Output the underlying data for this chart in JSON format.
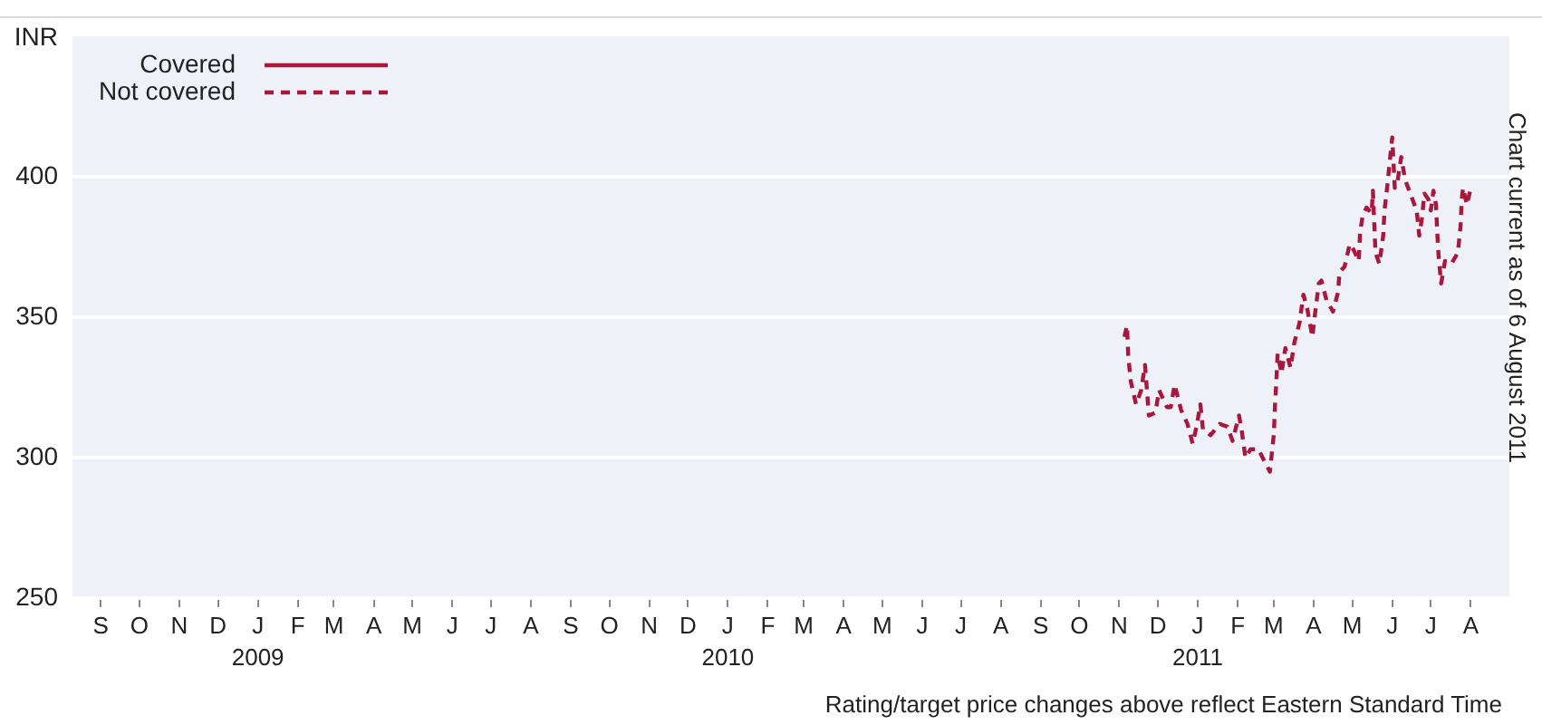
{
  "chart_data": {
    "type": "line",
    "ylabel": "INR",
    "legend": "top left",
    "grid": "y",
    "annotations": [
      "Chart current as of 6 August 2011",
      "Rating/target price changes above reflect Eastern Standard Time"
    ],
    "xlim": [
      "2008-08-10",
      "2011-08-31"
    ],
    "ylim": [
      250,
      450
    ],
    "yticks": [
      250,
      300,
      350,
      400
    ],
    "xticks": [
      {
        "value": "2008-09-01",
        "label": "S"
      },
      {
        "value": "2008-10-01",
        "label": "O"
      },
      {
        "value": "2008-11-01",
        "label": "N"
      },
      {
        "value": "2008-12-01",
        "label": "D"
      },
      {
        "value": "2009-01-01",
        "label": "J\n2009"
      },
      {
        "value": "2009-02-01",
        "label": "F"
      },
      {
        "value": "2009-03-01",
        "label": "M"
      },
      {
        "value": "2009-04-01",
        "label": "A"
      },
      {
        "value": "2009-05-01",
        "label": "M"
      },
      {
        "value": "2009-06-01",
        "label": "J"
      },
      {
        "value": "2009-07-01",
        "label": "J"
      },
      {
        "value": "2009-08-01",
        "label": "A"
      },
      {
        "value": "2009-09-01",
        "label": "S"
      },
      {
        "value": "2009-10-01",
        "label": "O"
      },
      {
        "value": "2009-11-01",
        "label": "N"
      },
      {
        "value": "2009-12-01",
        "label": "D"
      },
      {
        "value": "2010-01-01",
        "label": "J\n2010"
      },
      {
        "value": "2010-02-01",
        "label": "F"
      },
      {
        "value": "2010-03-01",
        "label": "M"
      },
      {
        "value": "2010-04-01",
        "label": "A"
      },
      {
        "value": "2010-05-01",
        "label": "M"
      },
      {
        "value": "2010-06-01",
        "label": "J"
      },
      {
        "value": "2010-07-01",
        "label": "J"
      },
      {
        "value": "2010-08-01",
        "label": "A"
      },
      {
        "value": "2010-09-01",
        "label": "S"
      },
      {
        "value": "2010-10-01",
        "label": "O"
      },
      {
        "value": "2010-11-01",
        "label": "N"
      },
      {
        "value": "2010-12-01",
        "label": "D"
      },
      {
        "value": "2011-01-01",
        "label": "J\n2011"
      },
      {
        "value": "2011-02-01",
        "label": "F"
      },
      {
        "value": "2011-03-01",
        "label": "M"
      },
      {
        "value": "2011-04-01",
        "label": "A"
      },
      {
        "value": "2011-05-01",
        "label": "M"
      },
      {
        "value": "2011-06-01",
        "label": "J"
      },
      {
        "value": "2011-07-01",
        "label": "J"
      },
      {
        "value": "2011-08-01",
        "label": "A"
      }
    ],
    "series": [
      {
        "name": "Covered",
        "color": "#a8173e",
        "line_style": "solid"
      },
      {
        "name": "Not covered",
        "color": "#a8173e",
        "line_style": "dashed",
        "x": [
          "2010-11-05",
          "2010-11-07",
          "2010-11-08",
          "2010-11-10",
          "2010-11-14",
          "2010-11-18",
          "2010-11-21",
          "2010-11-24",
          "2010-11-29",
          "2010-12-02",
          "2010-12-08",
          "2010-12-11",
          "2010-12-14",
          "2010-12-19",
          "2010-12-24",
          "2010-12-28",
          "2010-12-31",
          "2011-01-03",
          "2011-01-05",
          "2011-01-11",
          "2011-01-18",
          "2011-01-24",
          "2011-01-28",
          "2011-02-02",
          "2011-02-04",
          "2011-02-07",
          "2011-02-11",
          "2011-02-17",
          "2011-02-26",
          "2011-03-01",
          "2011-03-02",
          "2011-03-03",
          "2011-03-04",
          "2011-03-07",
          "2011-03-10",
          "2011-03-14",
          "2011-03-17",
          "2011-03-21",
          "2011-03-24",
          "2011-03-27",
          "2011-03-31",
          "2011-04-02",
          "2011-04-05",
          "2011-04-07",
          "2011-04-11",
          "2011-04-16",
          "2011-04-20",
          "2011-04-21",
          "2011-04-25",
          "2011-04-29",
          "2011-05-02",
          "2011-05-06",
          "2011-05-07",
          "2011-05-09",
          "2011-05-12",
          "2011-05-16",
          "2011-05-17",
          "2011-05-19",
          "2011-05-22",
          "2011-05-25",
          "2011-05-26",
          "2011-05-28",
          "2011-05-30",
          "2011-06-01",
          "2011-06-02",
          "2011-06-03",
          "2011-06-05",
          "2011-06-08",
          "2011-06-11",
          "2011-06-15",
          "2011-06-20",
          "2011-06-22",
          "2011-06-24",
          "2011-06-26",
          "2011-06-29",
          "2011-07-01",
          "2011-07-03",
          "2011-07-05",
          "2011-07-06",
          "2011-07-07",
          "2011-07-09",
          "2011-07-12",
          "2011-07-17",
          "2011-07-22",
          "2011-07-24",
          "2011-07-25",
          "2011-07-26",
          "2011-07-29",
          "2011-08-01"
        ],
        "values": [
          343,
          347,
          336,
          327,
          319,
          324,
          333,
          315,
          316,
          324,
          318,
          318,
          326,
          317,
          312,
          305,
          311,
          319,
          310,
          308,
          312,
          311,
          306,
          315,
          310,
          300,
          303,
          303,
          295,
          308,
          319,
          327,
          337,
          330,
          339,
          332,
          341,
          348,
          358,
          353,
          343,
          351,
          362,
          363,
          356,
          352,
          359,
          366,
          368,
          376,
          374,
          370,
          380,
          386,
          389,
          387,
          395,
          373,
          369,
          379,
          388,
          396,
          405,
          414,
          405,
          396,
          398,
          407,
          399,
          394,
          388,
          379,
          385,
          394,
          392,
          388,
          395,
          390,
          380,
          372,
          362,
          370,
          369,
          373,
          382,
          392,
          396,
          390,
          396
        ]
      }
    ]
  }
}
